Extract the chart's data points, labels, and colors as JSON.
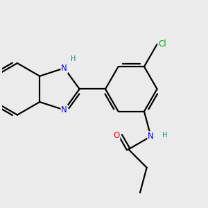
{
  "background_color": "#ebebeb",
  "bond_color": "#000000",
  "bond_width": 1.6,
  "atom_colors": {
    "N": "#0000ff",
    "O": "#ff0000",
    "Cl": "#00aa00",
    "H_label": "#008080",
    "C": "#000000"
  },
  "font_size_atom": 8.5,
  "font_size_small": 7.0
}
